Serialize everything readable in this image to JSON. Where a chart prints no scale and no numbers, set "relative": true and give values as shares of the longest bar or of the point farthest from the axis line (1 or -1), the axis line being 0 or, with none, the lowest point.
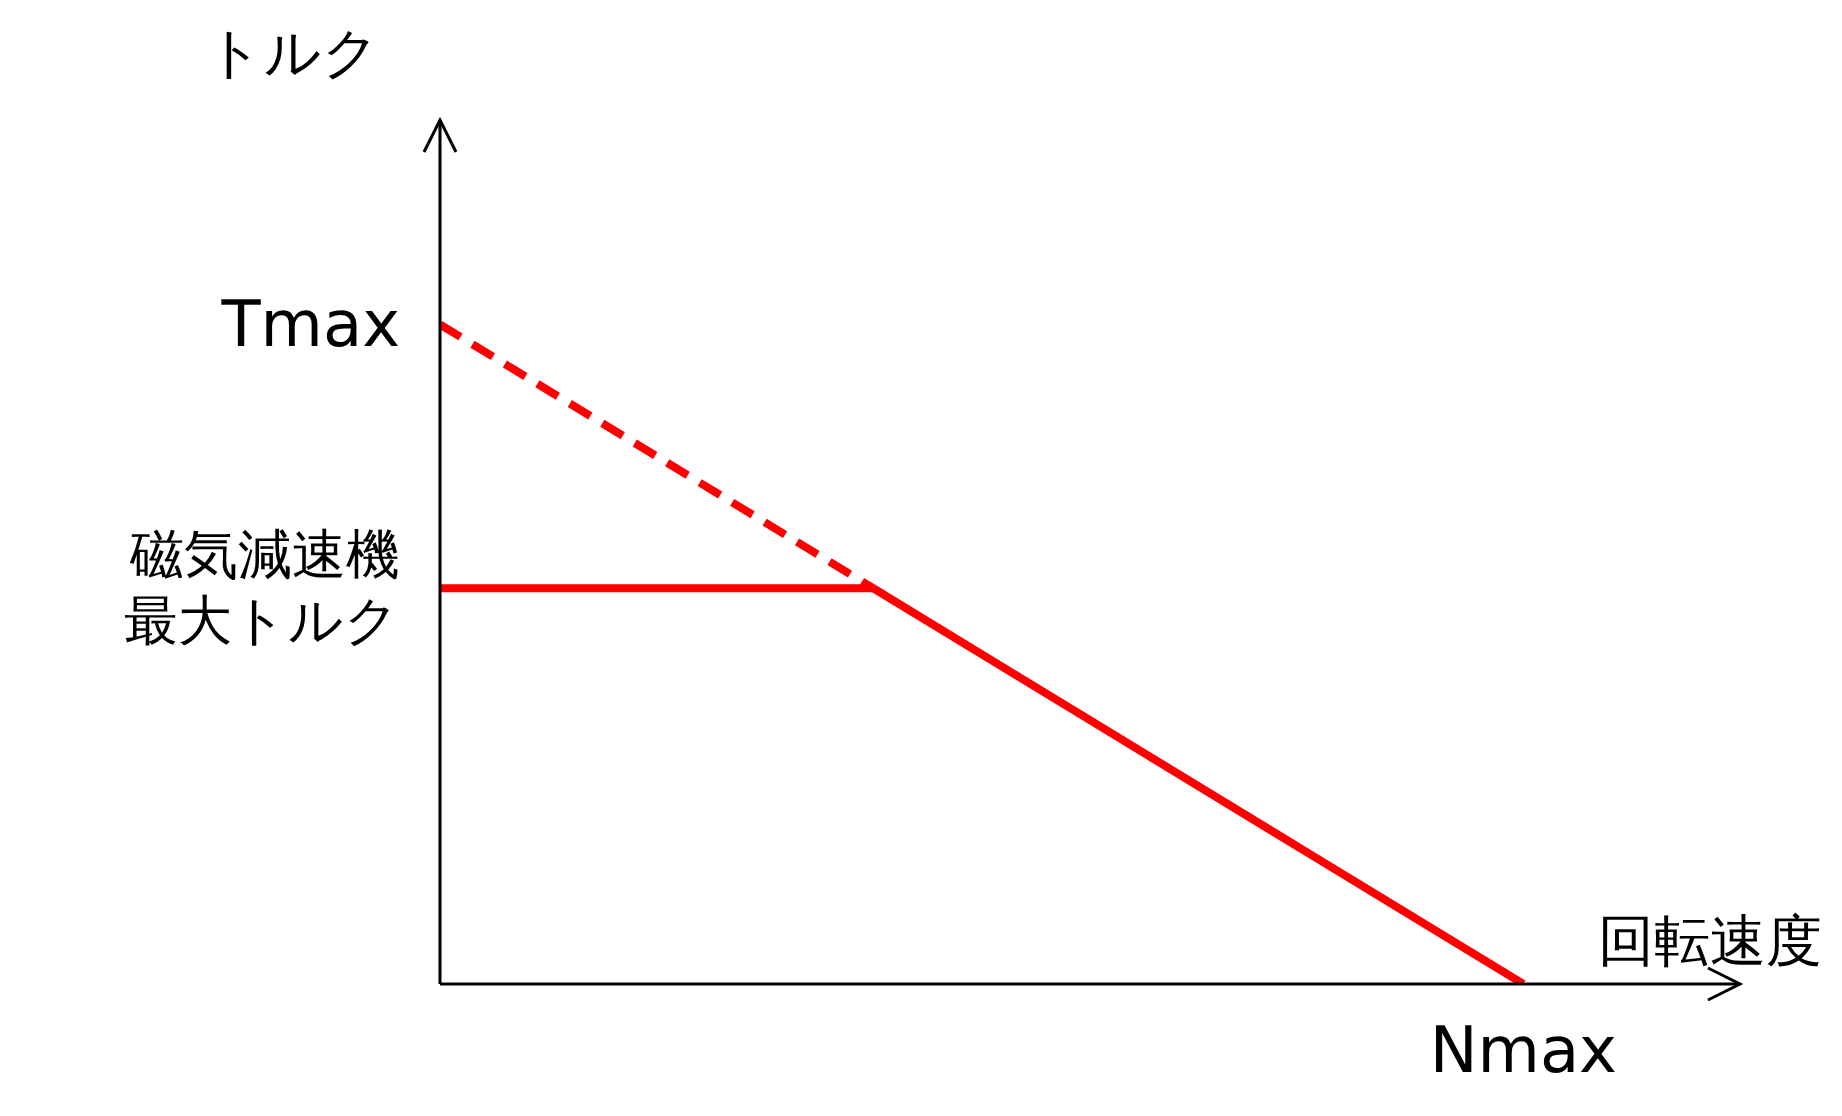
{
  "chart_data": {
    "type": "line",
    "ylabel": "トルク",
    "xlabel": "回転速度",
    "relative": true,
    "categories": [
      null,
      null,
      null,
      null,
      null,
      null,
      null
    ],
    "annotations": [
      "Tmax",
      "磁気減速機最大トルク",
      {
        "text": "Nmax",
        "y": 0
      }
    ],
    "series": [
      {
        "color": "#ff0000",
        "line_style": "dashed",
        "values": [
          1,
          0.8,
          0.6,
          null,
          null,
          null,
          null
        ]
      },
      {
        "color": "#ff0000",
        "line_style": "solid",
        "values": [
          null,
          null,
          0.6,
          0.4,
          0.2,
          0,
          null
        ]
      },
      {
        "color": "#ff0000",
        "line_style": "solid",
        "values": [
          0.6,
          0.6,
          0.6,
          null,
          null,
          null,
          null
        ]
      }
    ],
    "grid": false,
    "legend": false,
    "marker": "none"
  }
}
